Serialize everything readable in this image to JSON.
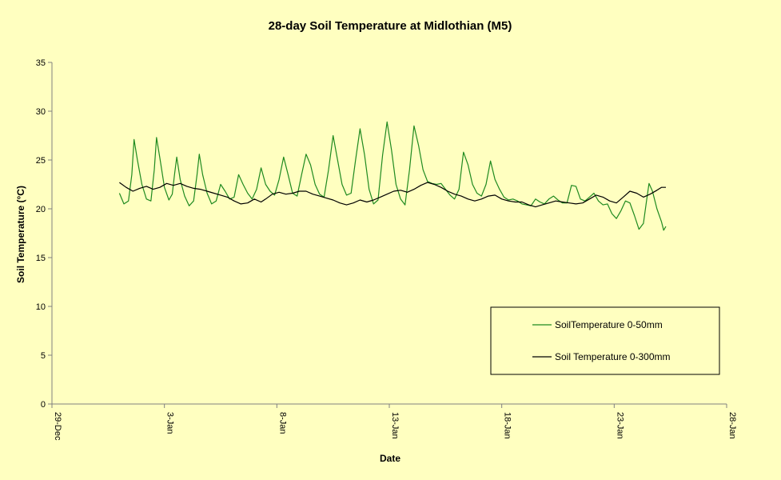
{
  "chart_data": {
    "type": "line",
    "title": "28-day Soil Temperature at Midlothian (M5)",
    "xlabel": "Date",
    "ylabel": "Soil Temperature (°C)",
    "ylim": [
      0,
      35
    ],
    "yticks": [
      0,
      5,
      10,
      15,
      20,
      25,
      30,
      35
    ],
    "xlim": [
      "29-Dec",
      "28-Jan"
    ],
    "xticks": [
      "29-Dec",
      "3-Jan",
      "8-Jan",
      "13-Jan",
      "18-Jan",
      "23-Jan",
      "28-Jan"
    ],
    "grid": false,
    "legend_position": "bottom-right",
    "colors": {
      "plot_bg": "#ffffc0",
      "axis": "#808080",
      "shallow": "#1f8a1f",
      "deep": "#000000"
    },
    "series": [
      {
        "name": "SoilTemperature 0-50mm",
        "color": "#1f8a1f",
        "points": [
          [
            3.0,
            21.6
          ],
          [
            3.2,
            20.5
          ],
          [
            3.4,
            20.8
          ],
          [
            3.55,
            23.5
          ],
          [
            3.65,
            27.1
          ],
          [
            3.8,
            25.0
          ],
          [
            4.0,
            22.5
          ],
          [
            4.2,
            21.0
          ],
          [
            4.4,
            20.8
          ],
          [
            4.55,
            24.0
          ],
          [
            4.65,
            27.3
          ],
          [
            4.8,
            25.2
          ],
          [
            5.0,
            22.2
          ],
          [
            5.2,
            20.9
          ],
          [
            5.35,
            21.5
          ],
          [
            5.45,
            23.5
          ],
          [
            5.55,
            25.3
          ],
          [
            5.7,
            23.0
          ],
          [
            5.9,
            21.3
          ],
          [
            6.1,
            20.3
          ],
          [
            6.3,
            20.8
          ],
          [
            6.45,
            23.5
          ],
          [
            6.55,
            25.6
          ],
          [
            6.7,
            23.5
          ],
          [
            6.9,
            21.6
          ],
          [
            7.1,
            20.5
          ],
          [
            7.3,
            20.8
          ],
          [
            7.5,
            22.5
          ],
          [
            7.7,
            21.8
          ],
          [
            7.9,
            21.0
          ],
          [
            8.1,
            21.2
          ],
          [
            8.3,
            23.5
          ],
          [
            8.5,
            22.5
          ],
          [
            8.7,
            21.6
          ],
          [
            8.9,
            21.0
          ],
          [
            9.1,
            22.0
          ],
          [
            9.3,
            24.2
          ],
          [
            9.5,
            22.5
          ],
          [
            9.7,
            21.8
          ],
          [
            9.9,
            21.4
          ],
          [
            10.1,
            23.0
          ],
          [
            10.3,
            25.3
          ],
          [
            10.5,
            23.5
          ],
          [
            10.7,
            21.6
          ],
          [
            10.9,
            21.3
          ],
          [
            11.1,
            23.5
          ],
          [
            11.3,
            25.6
          ],
          [
            11.5,
            24.5
          ],
          [
            11.7,
            22.5
          ],
          [
            11.9,
            21.5
          ],
          [
            12.1,
            21.2
          ],
          [
            12.3,
            24.0
          ],
          [
            12.5,
            27.5
          ],
          [
            12.7,
            25.0
          ],
          [
            12.9,
            22.5
          ],
          [
            13.1,
            21.4
          ],
          [
            13.3,
            21.6
          ],
          [
            13.5,
            25.0
          ],
          [
            13.7,
            28.2
          ],
          [
            13.9,
            25.5
          ],
          [
            14.1,
            22.0
          ],
          [
            14.3,
            20.5
          ],
          [
            14.5,
            20.9
          ],
          [
            14.7,
            25.5
          ],
          [
            14.9,
            28.9
          ],
          [
            15.1,
            26.0
          ],
          [
            15.3,
            22.5
          ],
          [
            15.5,
            21.0
          ],
          [
            15.7,
            20.4
          ],
          [
            15.9,
            24.0
          ],
          [
            16.1,
            28.5
          ],
          [
            16.3,
            26.5
          ],
          [
            16.5,
            24.0
          ],
          [
            16.7,
            22.8
          ],
          [
            16.9,
            22.6
          ],
          [
            17.1,
            22.5
          ],
          [
            17.3,
            22.6
          ],
          [
            17.5,
            22.0
          ],
          [
            17.7,
            21.4
          ],
          [
            17.9,
            21.0
          ],
          [
            18.1,
            22.0
          ],
          [
            18.3,
            25.8
          ],
          [
            18.5,
            24.5
          ],
          [
            18.7,
            22.5
          ],
          [
            18.9,
            21.6
          ],
          [
            19.1,
            21.3
          ],
          [
            19.3,
            22.5
          ],
          [
            19.5,
            24.9
          ],
          [
            19.7,
            23.0
          ],
          [
            19.9,
            22.0
          ],
          [
            20.1,
            21.2
          ],
          [
            20.3,
            20.9
          ],
          [
            20.5,
            21.0
          ],
          [
            20.7,
            20.8
          ],
          [
            20.9,
            20.5
          ],
          [
            21.1,
            20.4
          ],
          [
            21.3,
            20.3
          ],
          [
            21.5,
            21.0
          ],
          [
            21.7,
            20.7
          ],
          [
            21.9,
            20.5
          ],
          [
            22.1,
            21.0
          ],
          [
            22.3,
            21.3
          ],
          [
            22.5,
            20.9
          ],
          [
            22.7,
            20.6
          ],
          [
            22.9,
            20.6
          ],
          [
            23.1,
            22.4
          ],
          [
            23.3,
            22.3
          ],
          [
            23.5,
            21.0
          ],
          [
            23.7,
            20.8
          ],
          [
            23.9,
            21.2
          ],
          [
            24.1,
            21.6
          ],
          [
            24.3,
            20.8
          ],
          [
            24.5,
            20.4
          ],
          [
            24.7,
            20.5
          ],
          [
            24.9,
            19.5
          ],
          [
            25.1,
            19.0
          ],
          [
            25.3,
            19.8
          ],
          [
            25.5,
            20.8
          ],
          [
            25.7,
            20.6
          ],
          [
            25.9,
            19.3
          ],
          [
            26.1,
            17.9
          ],
          [
            26.3,
            18.5
          ],
          [
            26.45,
            21.0
          ],
          [
            26.55,
            22.6
          ],
          [
            26.7,
            21.8
          ],
          [
            26.9,
            20.0
          ],
          [
            27.1,
            18.7
          ],
          [
            27.2,
            17.8
          ],
          [
            27.3,
            18.2
          ]
        ]
      },
      {
        "name": "Soil Temperature 0-300mm",
        "color": "#000000",
        "points": [
          [
            3.0,
            22.7
          ],
          [
            3.3,
            22.2
          ],
          [
            3.6,
            21.8
          ],
          [
            3.9,
            22.1
          ],
          [
            4.2,
            22.3
          ],
          [
            4.5,
            22.0
          ],
          [
            4.8,
            22.2
          ],
          [
            5.1,
            22.6
          ],
          [
            5.4,
            22.4
          ],
          [
            5.7,
            22.6
          ],
          [
            6.0,
            22.3
          ],
          [
            6.3,
            22.1
          ],
          [
            6.6,
            22.0
          ],
          [
            6.9,
            21.8
          ],
          [
            7.2,
            21.6
          ],
          [
            7.5,
            21.4
          ],
          [
            7.8,
            21.2
          ],
          [
            8.1,
            20.8
          ],
          [
            8.4,
            20.5
          ],
          [
            8.7,
            20.6
          ],
          [
            9.0,
            21.0
          ],
          [
            9.3,
            20.7
          ],
          [
            9.5,
            21.0
          ],
          [
            9.8,
            21.5
          ],
          [
            10.1,
            21.7
          ],
          [
            10.4,
            21.5
          ],
          [
            10.7,
            21.6
          ],
          [
            11.0,
            21.8
          ],
          [
            11.3,
            21.8
          ],
          [
            11.6,
            21.5
          ],
          [
            11.9,
            21.3
          ],
          [
            12.2,
            21.1
          ],
          [
            12.5,
            20.9
          ],
          [
            12.8,
            20.6
          ],
          [
            13.1,
            20.4
          ],
          [
            13.4,
            20.6
          ],
          [
            13.7,
            20.9
          ],
          [
            14.0,
            20.7
          ],
          [
            14.3,
            20.9
          ],
          [
            14.6,
            21.2
          ],
          [
            14.9,
            21.5
          ],
          [
            15.2,
            21.8
          ],
          [
            15.5,
            21.9
          ],
          [
            15.8,
            21.7
          ],
          [
            16.1,
            22.0
          ],
          [
            16.4,
            22.4
          ],
          [
            16.7,
            22.7
          ],
          [
            17.0,
            22.5
          ],
          [
            17.3,
            22.2
          ],
          [
            17.6,
            21.8
          ],
          [
            17.9,
            21.5
          ],
          [
            18.2,
            21.3
          ],
          [
            18.5,
            21.0
          ],
          [
            18.8,
            20.8
          ],
          [
            19.1,
            21.0
          ],
          [
            19.4,
            21.3
          ],
          [
            19.7,
            21.4
          ],
          [
            20.0,
            21.0
          ],
          [
            20.3,
            20.8
          ],
          [
            20.6,
            20.7
          ],
          [
            20.9,
            20.7
          ],
          [
            21.2,
            20.4
          ],
          [
            21.5,
            20.2
          ],
          [
            21.8,
            20.4
          ],
          [
            22.1,
            20.6
          ],
          [
            22.4,
            20.8
          ],
          [
            22.7,
            20.7
          ],
          [
            23.0,
            20.6
          ],
          [
            23.3,
            20.5
          ],
          [
            23.6,
            20.6
          ],
          [
            23.9,
            21.0
          ],
          [
            24.2,
            21.4
          ],
          [
            24.5,
            21.2
          ],
          [
            24.8,
            20.8
          ],
          [
            25.1,
            20.6
          ],
          [
            25.4,
            21.2
          ],
          [
            25.7,
            21.8
          ],
          [
            26.0,
            21.6
          ],
          [
            26.3,
            21.2
          ],
          [
            26.6,
            21.5
          ],
          [
            26.9,
            21.9
          ],
          [
            27.1,
            22.2
          ],
          [
            27.3,
            22.2
          ]
        ]
      }
    ]
  }
}
